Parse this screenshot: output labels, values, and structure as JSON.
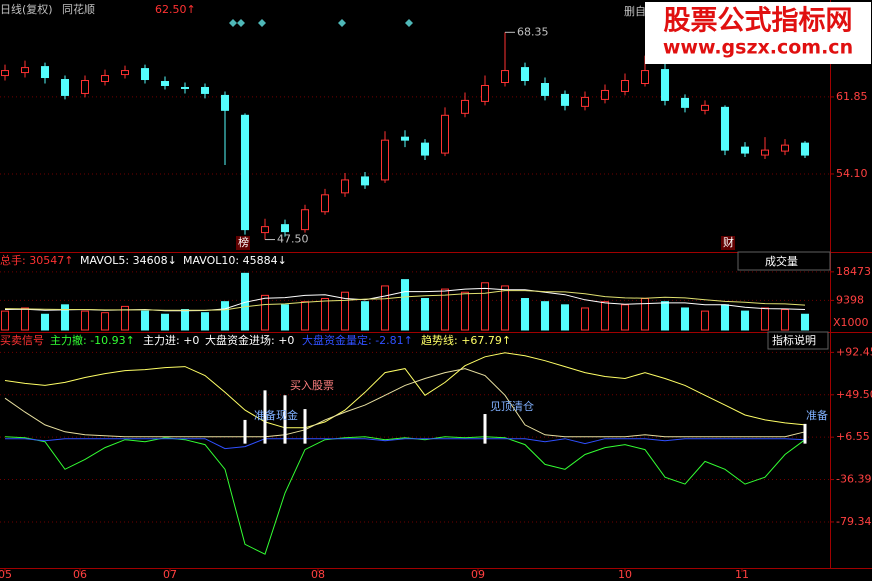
{
  "chart_data": [
    {
      "type": "candlestick",
      "header": [
        "日线(复权)",
        "同花顺",
        "62.50↑"
      ],
      "header_colors": [
        "#c0c0c0",
        "#c0c0c0",
        "#ff3232"
      ],
      "corner_text": "删自",
      "watermark": [
        "股票公式指标网",
        "www.gszx.com.cn"
      ],
      "markers": [
        "榜",
        "财"
      ],
      "annotations": [
        {
          "label": "68.35",
          "value": 68.35
        },
        {
          "label": "47.50",
          "value": 47.5
        }
      ],
      "up_color": "#ff3232",
      "down_color": "#54fcfc",
      "open": [
        64.0,
        64.3,
        64.9,
        63.6,
        62.2,
        63.4,
        64.1,
        64.7,
        63.4,
        62.8,
        62.8,
        62.0,
        60.0,
        48.2,
        49.0,
        48.5,
        50.3,
        52.2,
        53.8,
        53.5,
        57.8,
        57.2,
        56.2,
        60.2,
        61.4,
        63.3,
        64.8,
        63.2,
        62.1,
        60.9,
        61.6,
        62.4,
        63.2,
        64.6,
        61.7,
        60.5,
        60.8,
        56.8,
        56.0,
        56.4,
        57.2
      ],
      "close": [
        64.5,
        64.8,
        63.8,
        62.0,
        63.5,
        64.0,
        64.5,
        63.6,
        63.0,
        62.7,
        62.2,
        60.5,
        48.5,
        48.8,
        48.3,
        50.5,
        52.0,
        53.5,
        53.0,
        57.5,
        57.5,
        56.0,
        60.0,
        61.5,
        63.0,
        64.5,
        63.5,
        62.0,
        61.0,
        61.8,
        62.5,
        63.5,
        64.5,
        61.5,
        60.8,
        61.0,
        56.5,
        56.2,
        56.5,
        57.0,
        56.0
      ],
      "high": [
        65.1,
        65.5,
        65.3,
        64.0,
        64.0,
        64.6,
        65.0,
        65.1,
        63.9,
        63.3,
        63.2,
        62.4,
        60.2,
        49.6,
        49.5,
        51.0,
        52.6,
        54.2,
        54.3,
        58.4,
        58.5,
        57.6,
        60.8,
        62.3,
        64.0,
        68.35,
        65.3,
        63.8,
        62.5,
        62.4,
        63.1,
        64.2,
        66.0,
        65.2,
        62.1,
        61.5,
        61.0,
        57.3,
        57.8,
        57.6,
        57.4
      ],
      "low": [
        63.5,
        63.8,
        63.2,
        61.6,
        61.8,
        63.0,
        63.7,
        63.2,
        62.6,
        62.2,
        61.7,
        55.0,
        48.0,
        47.5,
        47.8,
        48.2,
        50.0,
        51.8,
        52.6,
        53.2,
        56.8,
        55.5,
        55.9,
        59.8,
        61.0,
        62.9,
        63.0,
        61.5,
        60.5,
        60.5,
        61.2,
        62.0,
        62.9,
        61.0,
        60.3,
        60.1,
        56.0,
        55.8,
        55.6,
        56.0,
        55.7
      ],
      "xlim": [
        -0.25,
        41.25
      ],
      "ylim": [
        46.45,
        71.6
      ],
      "yticks": [
        61.85,
        {
          "value": 54.1,
          "label": "54.10"
        }
      ],
      "grid": true
    },
    {
      "type": "bar",
      "header": [
        "总手: 30547↑",
        "MAVOL5: 34608↓",
        "MAVOL10: 45884↓"
      ],
      "header_colors": [
        "#ff3232",
        "#ffffff",
        "#ffffff"
      ],
      "menu": "成交量",
      "unit": "X1000",
      "values": [
        6000,
        7000,
        5000,
        8000,
        6000,
        5500,
        7500,
        6000,
        5000,
        6500,
        5500,
        9000,
        18000,
        11000,
        8000,
        9000,
        10000,
        12000,
        9000,
        14000,
        16000,
        10000,
        13000,
        12000,
        15000,
        14000,
        10000,
        9000,
        8000,
        7000,
        9000,
        8000,
        10000,
        9000,
        7000,
        6000,
        8000,
        6000,
        7000,
        6500,
        5000
      ],
      "series": [
        {
          "color": "#ffffff",
          "values": [
            6500,
            6600,
            6300,
            6400,
            6500,
            6300,
            6400,
            6500,
            6100,
            6100,
            6200,
            6700,
            8800,
            10100,
            10300,
            11000,
            11200,
            10000,
            9600,
            10800,
            12200,
            12200,
            12400,
            13000,
            13200,
            12800,
            12800,
            12000,
            11200,
            9600,
            8600,
            8200,
            8400,
            8600,
            8600,
            8000,
            8000,
            7200,
            6800,
            6700,
            6500
          ]
        },
        {
          "color": "#e0e070",
          "values": [
            6800,
            6700,
            6600,
            6500,
            6500,
            6400,
            6400,
            6400,
            6300,
            6300,
            6300,
            6400,
            7400,
            8100,
            8300,
            8800,
            9200,
            9400,
            9800,
            9900,
            10500,
            10900,
            11100,
            11500,
            11700,
            12500,
            12500,
            12200,
            12100,
            11500,
            10600,
            10200,
            10100,
            10400,
            10200,
            9600,
            9100,
            8800,
            8400,
            8300,
            7900
          ]
        }
      ],
      "xlim": [
        -0.25,
        41.25
      ],
      "ylim": [
        0,
        21600
      ],
      "yticks": [
        18473,
        9398
      ],
      "grid": true
    },
    {
      "type": "line",
      "header": [
        "买卖信号",
        "主力撤: -10.93↑",
        "主力进: +0",
        "大盘资金进场: +0",
        "大盘资金量定: -2.81↑",
        "趋势线: +67.79↑"
      ],
      "header_colors": [
        "#ff3232",
        "#33ff33",
        "#ffffff",
        "#ffffff",
        "#3050ff",
        "#ffff66"
      ],
      "menu": "指标说明",
      "annotations": [
        "买入股票",
        "准备现金",
        "见顶清仓",
        "准备"
      ],
      "series": [
        {
          "color": "#ffff66",
          "values": [
            64,
            61,
            59,
            62,
            67,
            71,
            74,
            75,
            77,
            78,
            69,
            52,
            34,
            22,
            16,
            16,
            22,
            34,
            52,
            72,
            76,
            49,
            62,
            79,
            88,
            92,
            89,
            84,
            78,
            72,
            68,
            66,
            72,
            66,
            59,
            49,
            39,
            29,
            24,
            21,
            19
          ]
        },
        {
          "color": "#e8e0a0",
          "values": [
            46,
            32,
            19,
            12,
            9,
            8,
            7,
            7,
            7,
            7,
            7,
            7,
            7,
            7,
            9,
            14,
            24,
            32,
            39,
            49,
            59,
            66,
            72,
            76,
            69,
            49,
            19,
            9,
            7,
            7,
            7,
            7,
            9,
            7,
            7,
            7,
            7,
            7,
            7,
            7,
            12
          ]
        },
        {
          "color": "#33ff33",
          "values": [
            7,
            6,
            2,
            -26,
            -16,
            -4,
            4,
            2,
            6,
            4,
            -1,
            -26,
            -102,
            -112,
            -50,
            -6,
            4,
            6,
            7,
            4,
            6,
            4,
            7,
            6,
            7,
            6,
            -1,
            -21,
            -26,
            -11,
            -4,
            -1,
            -6,
            -34,
            -41,
            -18,
            -26,
            -41,
            -34,
            -11,
            4
          ]
        },
        {
          "color": "#3050ff",
          "values": [
            5,
            5,
            3,
            5,
            5,
            5,
            5,
            5,
            5,
            5,
            5,
            -5,
            -3,
            5,
            5,
            5,
            5,
            5,
            5,
            3,
            5,
            5,
            5,
            5,
            5,
            5,
            5,
            2,
            5,
            0,
            5,
            5,
            5,
            3,
            5,
            5,
            5,
            5,
            5,
            5,
            4
          ]
        },
        {
          "color": "#ffffff",
          "style": "bar",
          "values": [
            null,
            null,
            null,
            null,
            null,
            null,
            null,
            null,
            null,
            null,
            null,
            null,
            24,
            54,
            49,
            35,
            null,
            null,
            null,
            null,
            null,
            null,
            null,
            null,
            30,
            null,
            null,
            null,
            null,
            null,
            null,
            null,
            null,
            null,
            null,
            null,
            null,
            null,
            null,
            null,
            20
          ]
        }
      ],
      "xlim": [
        -0.25,
        41.25
      ],
      "ylim": [
        -126,
        105
      ],
      "yticks": [
        {
          "value": 92.45,
          "label": "+92.45"
        },
        {
          "value": 49.5,
          "label": "+49.50"
        },
        {
          "value": 6.55,
          "label": "+6.55"
        },
        {
          "value": -36.39,
          "label": "-36.39"
        },
        {
          "value": -79.34,
          "label": "-79.34"
        }
      ],
      "xticks": [
        {
          "value": 0,
          "label": "05"
        },
        {
          "value": 3.75,
          "label": "06"
        },
        {
          "value": 8.25,
          "label": "07"
        },
        {
          "value": 15.65,
          "label": "08"
        },
        {
          "value": 23.65,
          "label": "09"
        },
        {
          "value": 31,
          "label": "10"
        },
        {
          "value": 36.85,
          "label": "11"
        }
      ],
      "grid": true
    }
  ]
}
